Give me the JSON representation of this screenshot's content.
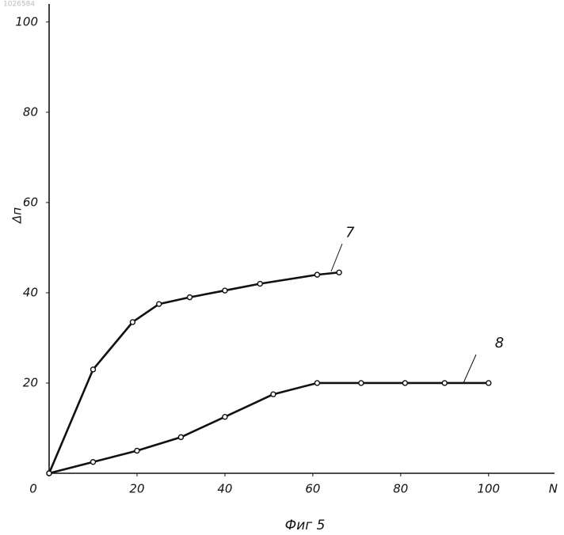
{
  "chart_data": {
    "type": "line",
    "title": "Фиг 5",
    "watermark": "1026584",
    "x_label": "N",
    "y_label": "Δп",
    "xlim": [
      0,
      115
    ],
    "ylim": [
      0,
      104
    ],
    "xticks": [
      0,
      20,
      40,
      60,
      80,
      100
    ],
    "yticks": [
      20,
      40,
      60,
      80,
      100
    ],
    "grid": false,
    "series": [
      {
        "name": "7",
        "color": "#111111",
        "x": [
          0,
          10,
          19,
          25,
          32,
          40,
          48,
          61,
          66
        ],
        "values": [
          0,
          23,
          33.5,
          37.5,
          39,
          40.5,
          42,
          44,
          44.5
        ]
      },
      {
        "name": "8",
        "color": "#111111",
        "x": [
          0,
          10,
          20,
          30,
          40,
          51,
          61,
          71,
          81,
          90,
          100
        ],
        "values": [
          0,
          2.5,
          5,
          8,
          12.5,
          17.5,
          20,
          20,
          20,
          20,
          20
        ]
      }
    ]
  }
}
